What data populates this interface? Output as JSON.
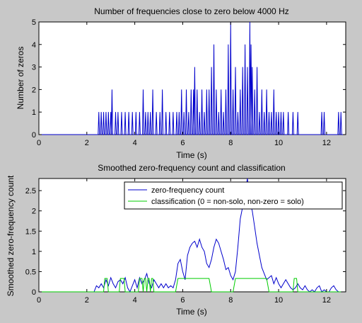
{
  "chart_data": [
    {
      "type": "line",
      "title": "Number of frequencies close to zero below 4000 Hz",
      "xlabel": "Time (s)",
      "ylabel": "Number of zeros",
      "xlim": [
        0,
        12.8
      ],
      "ylim": [
        0,
        5
      ],
      "xticks": [
        "0",
        "2",
        "4",
        "6",
        "8",
        "10",
        "12"
      ],
      "yticks": [
        "0",
        "1",
        "2",
        "3",
        "4",
        "5"
      ],
      "grid": false,
      "series": [
        {
          "color": "#0000cc",
          "x": [
            2.5,
            2.6,
            2.7,
            2.8,
            2.9,
            3.0,
            3.05,
            3.2,
            3.3,
            3.45,
            3.6,
            3.75,
            3.9,
            4.05,
            4.2,
            4.35,
            4.45,
            4.55,
            4.65,
            4.75,
            4.9,
            5.05,
            5.15,
            5.3,
            5.45,
            5.6,
            5.75,
            5.85,
            5.95,
            6.05,
            6.15,
            6.25,
            6.35,
            6.45,
            6.5,
            6.6,
            6.7,
            6.8,
            6.9,
            7.0,
            7.1,
            7.2,
            7.3,
            7.4,
            7.5,
            7.6,
            7.7,
            7.8,
            7.9,
            8.0,
            8.1,
            8.2,
            8.3,
            8.4,
            8.5,
            8.6,
            8.7,
            8.8,
            8.85,
            8.9,
            9.0,
            9.1,
            9.2,
            9.3,
            9.4,
            9.5,
            9.6,
            9.7,
            9.8,
            9.9,
            10.0,
            10.1,
            10.2,
            10.4,
            10.6,
            10.8,
            11.8,
            11.9,
            12.5,
            12.6
          ],
          "y": [
            1,
            1,
            1,
            1,
            1,
            1,
            2,
            1,
            1,
            1,
            1,
            1,
            1,
            1,
            1,
            2,
            1,
            1,
            1,
            2,
            1,
            1,
            2,
            1,
            1,
            1,
            1,
            1,
            2,
            1,
            2,
            1,
            2,
            2,
            3,
            2,
            1,
            2,
            1,
            2,
            2,
            3,
            4,
            2,
            1,
            2,
            1,
            2,
            4,
            5,
            2,
            3,
            1,
            2,
            3,
            4,
            3,
            5,
            4,
            3,
            2,
            3,
            1,
            2,
            1,
            2,
            1,
            1,
            2,
            1,
            1,
            1,
            1,
            1,
            1,
            1,
            1,
            1,
            1,
            1
          ]
        }
      ]
    },
    {
      "type": "line",
      "title": "Smoothed zero-frequency count and classification",
      "xlabel": "Time (s)",
      "ylabel": "Smoothed zero-frequency count",
      "xlim": [
        0,
        12.8
      ],
      "ylim": [
        0,
        2.8
      ],
      "xticks": [
        "0",
        "2",
        "4",
        "6",
        "8",
        "10",
        "12"
      ],
      "yticks": [
        "0",
        "0.5",
        "1",
        "1.5",
        "2",
        "2.5"
      ],
      "grid": false,
      "legend_position": "top-right",
      "series": [
        {
          "name": "zero-frequency count",
          "color": "#0000cc",
          "x": [
            0,
            2.3,
            2.4,
            2.5,
            2.6,
            2.7,
            2.8,
            2.9,
            3.0,
            3.1,
            3.2,
            3.3,
            3.4,
            3.5,
            3.6,
            3.7,
            3.8,
            3.9,
            4.0,
            4.1,
            4.2,
            4.3,
            4.4,
            4.5,
            4.6,
            4.7,
            4.8,
            4.9,
            5.0,
            5.1,
            5.2,
            5.3,
            5.4,
            5.5,
            5.6,
            5.7,
            5.8,
            5.9,
            6.0,
            6.1,
            6.2,
            6.3,
            6.4,
            6.5,
            6.6,
            6.7,
            6.8,
            6.9,
            7.0,
            7.1,
            7.2,
            7.3,
            7.4,
            7.5,
            7.6,
            7.7,
            7.8,
            7.9,
            8.0,
            8.1,
            8.2,
            8.3,
            8.4,
            8.5,
            8.6,
            8.7,
            8.8,
            8.9,
            9.0,
            9.1,
            9.2,
            9.3,
            9.4,
            9.5,
            9.6,
            9.7,
            9.8,
            9.9,
            10.0,
            10.1,
            10.2,
            10.3,
            10.4,
            10.5,
            10.6,
            10.7,
            10.8,
            10.9,
            11.0,
            11.1,
            11.2,
            11.3,
            11.4,
            11.5,
            11.6,
            11.7,
            11.8,
            11.9,
            12.0,
            12.1,
            12.2,
            12.3,
            12.4,
            12.5,
            12.6
          ],
          "y": [
            0,
            0,
            0.15,
            0.1,
            0.2,
            0.1,
            0.3,
            0.15,
            0.35,
            0.2,
            0.1,
            0.25,
            0.3,
            0.2,
            0.35,
            0.1,
            0.0,
            0.15,
            0.3,
            0.1,
            0.35,
            0.2,
            0.3,
            0.45,
            0.2,
            0.1,
            0.3,
            0.2,
            0.1,
            0.2,
            0.1,
            0.2,
            0.1,
            0.15,
            0.1,
            0.3,
            0.7,
            0.8,
            0.5,
            0.3,
            0.9,
            1.1,
            1.2,
            1.25,
            1.1,
            1.3,
            1.1,
            1.0,
            0.7,
            0.6,
            0.8,
            1.1,
            1.3,
            1.2,
            1.0,
            0.8,
            0.55,
            0.6,
            0.4,
            0.3,
            0.5,
            1.1,
            1.8,
            2.1,
            2.5,
            2.8,
            2.2,
            2.0,
            1.6,
            1.2,
            0.9,
            0.6,
            0.45,
            0.3,
            0.35,
            0.4,
            0.2,
            0.35,
            0.2,
            0.1,
            0.2,
            0.3,
            0.2,
            0.1,
            0.05,
            0.1,
            0.2,
            0.1,
            0.05,
            0.15,
            0.05,
            0.0,
            0.05,
            0.0,
            0.1,
            0.15,
            0.0,
            0.05,
            0.0,
            0.0,
            0.1,
            0.15,
            0.05,
            0.0,
            0.0
          ]
        },
        {
          "name": "classification (0 = non-solo, non-zero = solo)",
          "color": "#00cc00",
          "x": [
            0,
            2.7,
            2.75,
            2.85,
            2.9,
            3.35,
            3.4,
            3.55,
            3.6,
            4.15,
            4.2,
            4.3,
            4.35,
            4.4,
            4.45,
            4.5,
            4.55,
            4.6,
            4.65,
            4.7,
            4.75,
            4.8,
            4.85,
            5.7,
            5.8,
            7.1,
            7.2,
            8.1,
            8.2,
            9.5,
            9.6,
            10.6,
            10.65,
            10.75,
            10.8,
            12.6
          ],
          "y": [
            0,
            0,
            0.33,
            0.33,
            0,
            0,
            0.33,
            0.33,
            0,
            0,
            0.33,
            0.33,
            0,
            0.33,
            0.33,
            0,
            0.33,
            0.33,
            0,
            0.33,
            0.33,
            0,
            0,
            0,
            0.33,
            0.33,
            0,
            0,
            0.33,
            0.33,
            0,
            0,
            0.33,
            0.33,
            0,
            0
          ]
        }
      ]
    }
  ]
}
